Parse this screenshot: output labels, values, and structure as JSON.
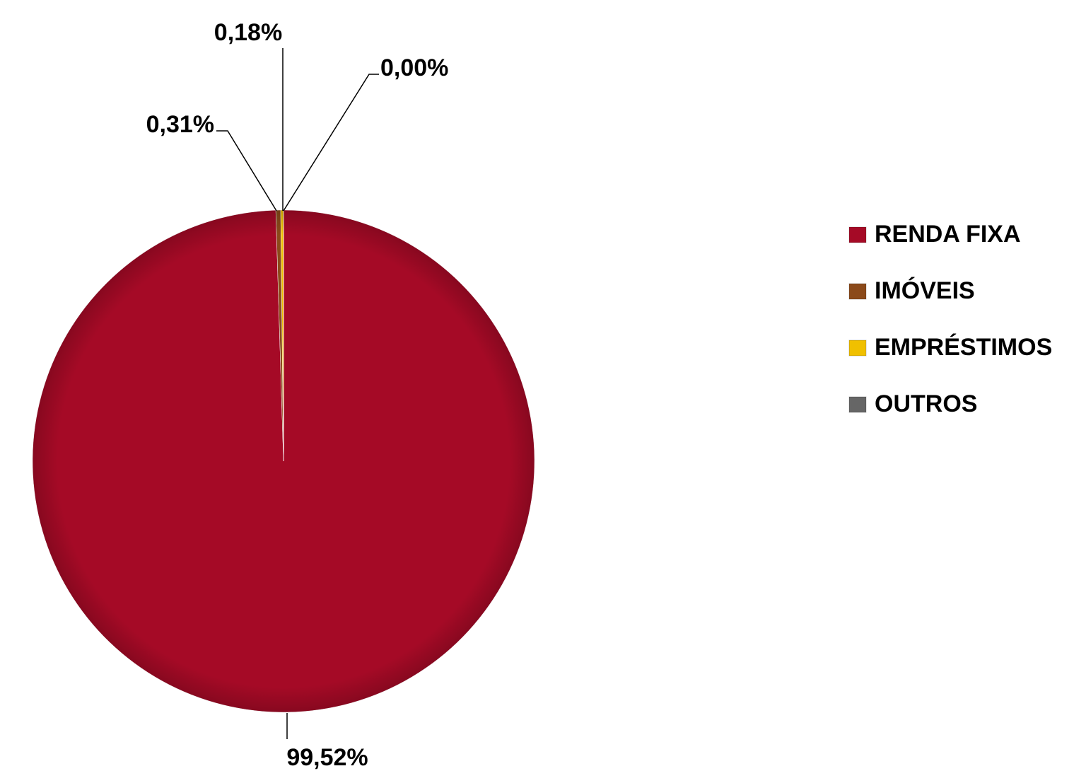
{
  "chart_data": {
    "type": "pie",
    "categories": [
      "RENDA FIXA",
      "IMÓVEIS",
      "EMPRÉSTIMOS",
      "OUTROS"
    ],
    "values": [
      99.52,
      0.31,
      0.18,
      0
    ],
    "value_labels": [
      "99,52%",
      "0,31%",
      "0,18%",
      "0,00%"
    ],
    "colors": [
      "#a50a26",
      "#8b4a1a",
      "#f0c000",
      "#666666"
    ],
    "legend": "right"
  }
}
